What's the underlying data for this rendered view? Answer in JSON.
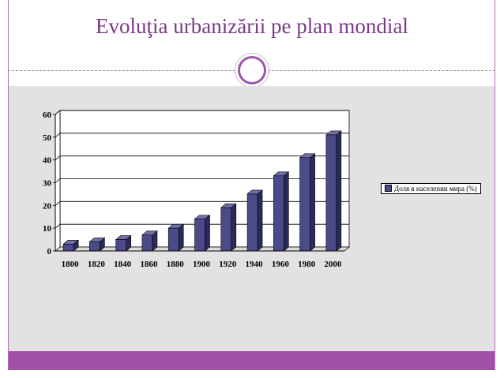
{
  "slide": {
    "title": "Evoluţia urbanizării pe plan mondial",
    "accent_color": "#9b58a8",
    "band_color": "#a050a8"
  },
  "chart_data": {
    "type": "bar",
    "title": "",
    "xlabel": "",
    "ylabel": "",
    "categories": [
      "1800",
      "1820",
      "1840",
      "1860",
      "1880",
      "1900",
      "1920",
      "1940",
      "1960",
      "1980",
      "2000"
    ],
    "series": [
      {
        "name": "Доля в населении мира (%)",
        "values": [
          3,
          4,
          5,
          7,
          10,
          14,
          19,
          25,
          33,
          41,
          51
        ],
        "color": "#4b4b89"
      }
    ],
    "ylim": [
      0,
      60
    ],
    "yticks": [
      "0",
      "10",
      "20",
      "30",
      "40",
      "50",
      "60"
    ],
    "grid": true,
    "legend": "right",
    "style": "3d"
  }
}
